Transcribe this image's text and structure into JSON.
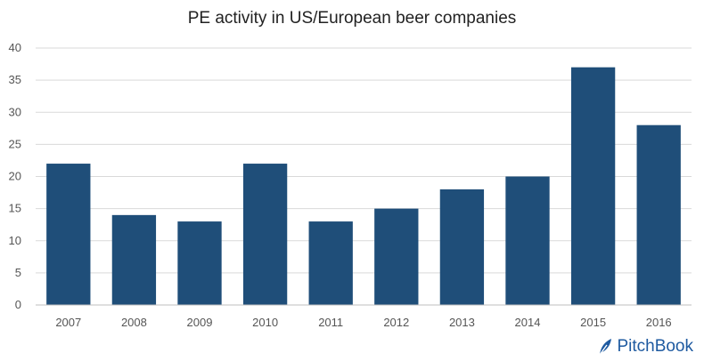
{
  "chart_data": {
    "type": "bar",
    "title": "PE activity in US/European beer companies",
    "categories": [
      "2007",
      "2008",
      "2009",
      "2010",
      "2011",
      "2012",
      "2013",
      "2014",
      "2015",
      "2016"
    ],
    "values": [
      22,
      14,
      13,
      22,
      13,
      15,
      18,
      20,
      37,
      28
    ],
    "ylim": [
      0,
      40
    ],
    "yticks": [
      "0",
      "5",
      "10",
      "15",
      "20",
      "25",
      "30",
      "35",
      "40"
    ],
    "xlabel": "",
    "ylabel": "",
    "grid": true,
    "legend": "none",
    "bar_color": "#1f4e79"
  },
  "logo": {
    "text": "PitchBook",
    "color": "#1e5aa0"
  }
}
